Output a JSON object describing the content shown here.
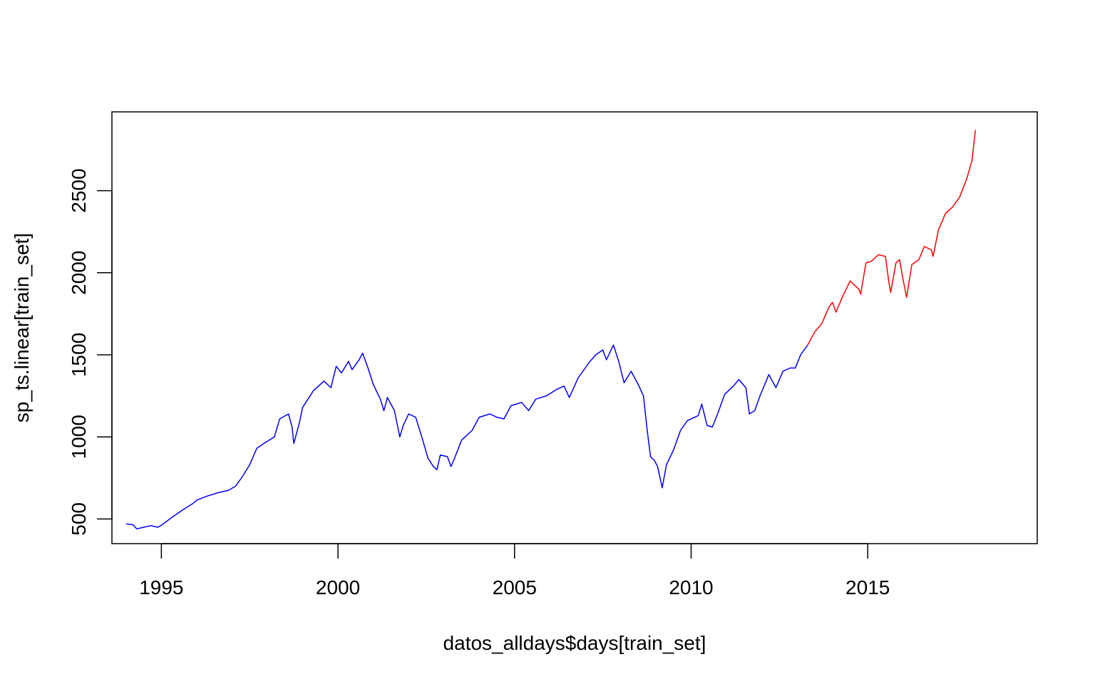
{
  "chart_data": {
    "type": "line",
    "title": "",
    "xlabel": "datos_alldays$days[train_set]",
    "ylabel": "sp_ts.linear[train_set]",
    "xlim": [
      1993.6,
      2019.8
    ],
    "ylim": [
      350,
      2980
    ],
    "x_ticks": [
      1995,
      2000,
      2005,
      2010,
      2015
    ],
    "y_ticks": [
      500,
      1000,
      1500,
      2000,
      2500
    ],
    "grid": false,
    "legend": "none",
    "series": [
      {
        "color": "#0000ff",
        "points": [
          [
            1994.0,
            470
          ],
          [
            1994.2,
            465
          ],
          [
            1994.3,
            440
          ],
          [
            1994.5,
            450
          ],
          [
            1994.7,
            460
          ],
          [
            1994.9,
            450
          ],
          [
            1995.0,
            462
          ],
          [
            1995.3,
            510
          ],
          [
            1995.6,
            555
          ],
          [
            1995.9,
            595
          ],
          [
            1996.0,
            615
          ],
          [
            1996.3,
            640
          ],
          [
            1996.6,
            660
          ],
          [
            1996.9,
            675
          ],
          [
            1997.1,
            700
          ],
          [
            1997.3,
            760
          ],
          [
            1997.5,
            830
          ],
          [
            1997.7,
            930
          ],
          [
            1997.9,
            960
          ],
          [
            1998.2,
            1000
          ],
          [
            1998.35,
            1110
          ],
          [
            1998.6,
            1140
          ],
          [
            1998.7,
            1060
          ],
          [
            1998.75,
            960
          ],
          [
            1998.9,
            1080
          ],
          [
            1999.0,
            1180
          ],
          [
            1999.3,
            1280
          ],
          [
            1999.6,
            1340
          ],
          [
            1999.8,
            1300
          ],
          [
            1999.95,
            1430
          ],
          [
            2000.1,
            1390
          ],
          [
            2000.3,
            1460
          ],
          [
            2000.4,
            1410
          ],
          [
            2000.6,
            1470
          ],
          [
            2000.7,
            1510
          ],
          [
            2000.85,
            1420
          ],
          [
            2001.0,
            1320
          ],
          [
            2001.2,
            1230
          ],
          [
            2001.3,
            1160
          ],
          [
            2001.4,
            1240
          ],
          [
            2001.6,
            1160
          ],
          [
            2001.75,
            1000
          ],
          [
            2001.85,
            1070
          ],
          [
            2002.0,
            1140
          ],
          [
            2002.2,
            1120
          ],
          [
            2002.4,
            980
          ],
          [
            2002.55,
            870
          ],
          [
            2002.7,
            820
          ],
          [
            2002.8,
            800
          ],
          [
            2002.9,
            890
          ],
          [
            2003.1,
            880
          ],
          [
            2003.2,
            820
          ],
          [
            2003.3,
            870
          ],
          [
            2003.5,
            980
          ],
          [
            2003.8,
            1040
          ],
          [
            2004.0,
            1120
          ],
          [
            2004.3,
            1140
          ],
          [
            2004.5,
            1120
          ],
          [
            2004.7,
            1110
          ],
          [
            2004.9,
            1190
          ],
          [
            2005.2,
            1210
          ],
          [
            2005.4,
            1160
          ],
          [
            2005.6,
            1230
          ],
          [
            2005.9,
            1250
          ],
          [
            2006.2,
            1290
          ],
          [
            2006.4,
            1310
          ],
          [
            2006.55,
            1240
          ],
          [
            2006.8,
            1360
          ],
          [
            2007.0,
            1420
          ],
          [
            2007.1,
            1450
          ],
          [
            2007.3,
            1500
          ],
          [
            2007.5,
            1530
          ],
          [
            2007.6,
            1470
          ],
          [
            2007.8,
            1560
          ],
          [
            2007.95,
            1460
          ],
          [
            2008.1,
            1330
          ],
          [
            2008.3,
            1400
          ],
          [
            2008.5,
            1320
          ],
          [
            2008.65,
            1250
          ],
          [
            2008.75,
            1050
          ],
          [
            2008.85,
            880
          ],
          [
            2008.95,
            860
          ],
          [
            2009.05,
            820
          ],
          [
            2009.18,
            690
          ],
          [
            2009.3,
            830
          ],
          [
            2009.5,
            920
          ],
          [
            2009.7,
            1040
          ],
          [
            2009.9,
            1100
          ],
          [
            2010.2,
            1130
          ],
          [
            2010.3,
            1200
          ],
          [
            2010.45,
            1070
          ],
          [
            2010.6,
            1060
          ],
          [
            2010.75,
            1140
          ],
          [
            2010.95,
            1260
          ],
          [
            2011.2,
            1310
          ],
          [
            2011.35,
            1350
          ],
          [
            2011.55,
            1300
          ],
          [
            2011.65,
            1140
          ],
          [
            2011.8,
            1160
          ],
          [
            2011.95,
            1250
          ],
          [
            2012.2,
            1380
          ],
          [
            2012.4,
            1300
          ],
          [
            2012.6,
            1400
          ],
          [
            2012.8,
            1420
          ],
          [
            2012.95,
            1420
          ],
          [
            2013.1,
            1500
          ],
          [
            2013.3,
            1560
          ]
        ]
      },
      {
        "color": "#ff0000",
        "points": [
          [
            2013.3,
            1560
          ],
          [
            2013.5,
            1640
          ],
          [
            2013.7,
            1690
          ],
          [
            2013.9,
            1790
          ],
          [
            2014.0,
            1820
          ],
          [
            2014.1,
            1760
          ],
          [
            2014.3,
            1860
          ],
          [
            2014.5,
            1950
          ],
          [
            2014.75,
            1900
          ],
          [
            2014.8,
            1870
          ],
          [
            2014.95,
            2060
          ],
          [
            2015.1,
            2070
          ],
          [
            2015.3,
            2110
          ],
          [
            2015.5,
            2100
          ],
          [
            2015.6,
            1940
          ],
          [
            2015.65,
            1880
          ],
          [
            2015.8,
            2060
          ],
          [
            2015.9,
            2080
          ],
          [
            2016.0,
            1960
          ],
          [
            2016.1,
            1850
          ],
          [
            2016.25,
            2050
          ],
          [
            2016.45,
            2080
          ],
          [
            2016.6,
            2160
          ],
          [
            2016.8,
            2140
          ],
          [
            2016.85,
            2100
          ],
          [
            2017.0,
            2260
          ],
          [
            2017.2,
            2360
          ],
          [
            2017.4,
            2400
          ],
          [
            2017.6,
            2460
          ],
          [
            2017.8,
            2570
          ],
          [
            2017.95,
            2680
          ],
          [
            2018.05,
            2870
          ]
        ]
      }
    ]
  }
}
